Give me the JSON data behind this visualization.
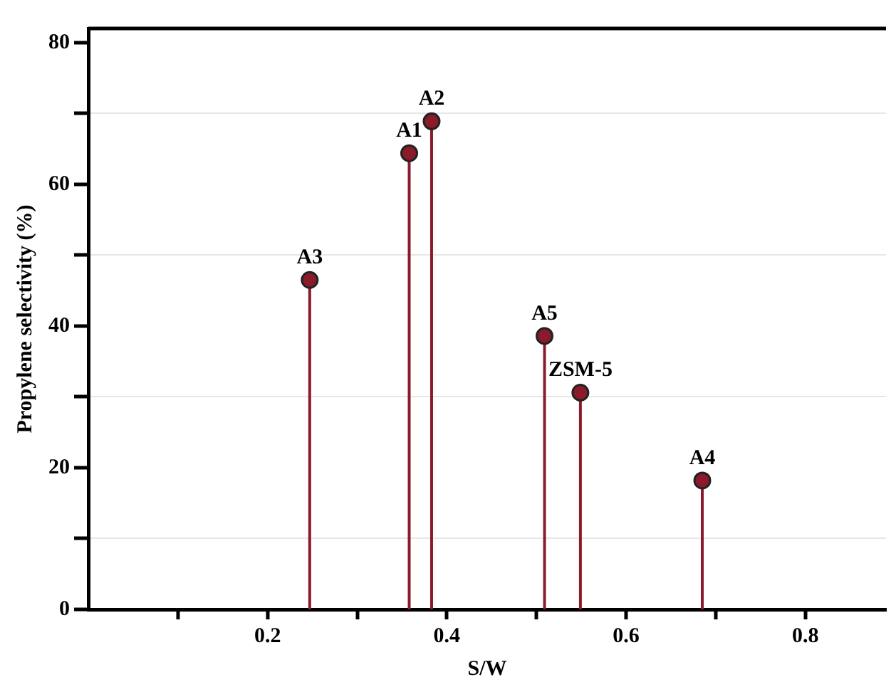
{
  "chart_data": {
    "type": "lollipop",
    "xlabel": "S/W",
    "ylabel": "Propylene selectivity (%)",
    "x": [
      0.247,
      0.358,
      0.383,
      0.509,
      0.549,
      0.685
    ],
    "series": [
      {
        "color": "#8b1a2b",
        "values": [
          46.5,
          64.4,
          68.9,
          38.6,
          30.6,
          18.2
        ]
      }
    ],
    "xlim": [
      0,
      0.89
    ],
    "xticks": [
      {
        "value": 0.1,
        "label": null
      },
      0.2,
      {
        "value": 0.3,
        "label": null
      },
      0.4,
      {
        "value": 0.5,
        "label": null
      },
      0.6,
      {
        "value": 0.7,
        "label": null
      },
      0.8
    ],
    "ylim": [
      0,
      82
    ],
    "yticks": [
      0,
      {
        "value": 10,
        "label": null
      },
      20,
      {
        "value": 30,
        "label": null
      },
      40,
      {
        "value": 50,
        "label": null
      },
      60,
      {
        "value": 70,
        "label": null
      },
      80
    ],
    "grid": "y",
    "marker": "circle",
    "annotations": [
      {
        "text": "A3",
        "x": 0.247,
        "y": 46.5
      },
      {
        "text": "A1",
        "x": 0.358,
        "y": 64.4
      },
      {
        "text": "A2",
        "x": 0.383,
        "y": 68.9
      },
      {
        "text": "A5",
        "x": 0.509,
        "y": 38.6
      },
      {
        "text": "ZSM-5",
        "x": 0.549,
        "y": 30.6
      },
      {
        "text": "A4",
        "x": 0.685,
        "y": 18.2
      }
    ]
  }
}
